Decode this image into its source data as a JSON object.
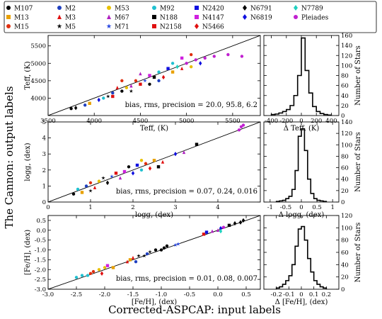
{
  "figure": {
    "ylabel": "The Cannon: output labels",
    "xlabel": "Corrected-ASPCAP: input labels"
  },
  "legend": [
    {
      "name": "M107",
      "color": "#000000",
      "marker": "circle"
    },
    {
      "name": "M2",
      "color": "#1f3fbf",
      "marker": "circle"
    },
    {
      "name": "M53",
      "color": "#e8c000",
      "marker": "circle"
    },
    {
      "name": "M92",
      "color": "#20c0d0",
      "marker": "circle"
    },
    {
      "name": "N2420",
      "color": "#1010e0",
      "marker": "square"
    },
    {
      "name": "N6791",
      "color": "#000000",
      "marker": "diamond"
    },
    {
      "name": "N7789",
      "color": "#20d0c0",
      "marker": "diamond"
    },
    {
      "name": "M13",
      "color": "#e8a000",
      "marker": "square"
    },
    {
      "name": "M3",
      "color": "#e01010",
      "marker": "triangle"
    },
    {
      "name": "M67",
      "color": "#b020c0",
      "marker": "triangle"
    },
    {
      "name": "N188",
      "color": "#000000",
      "marker": "square"
    },
    {
      "name": "N4147",
      "color": "#d020e0",
      "marker": "square"
    },
    {
      "name": "N6819",
      "color": "#1010e0",
      "marker": "diamond"
    },
    {
      "name": "Pleiades",
      "color": "#c020d0",
      "marker": "circle"
    },
    {
      "name": "M15",
      "color": "#e03010",
      "marker": "circle"
    },
    {
      "name": "M5",
      "color": "#000000",
      "marker": "star"
    },
    {
      "name": "M71",
      "color": "#2040e0",
      "marker": "star"
    },
    {
      "name": "N2158",
      "color": "#e01010",
      "marker": "square"
    },
    {
      "name": "N5466",
      "color": "#e01010",
      "marker": "diamond"
    }
  ],
  "chart_data": [
    {
      "type": "scatter",
      "xlabel": "Teff, (K)",
      "ylabel": "Teff, (K)",
      "xlim": [
        3500,
        5800
      ],
      "ylim": [
        3500,
        5800
      ],
      "xticks": [
        3500,
        4000,
        4500,
        5000,
        5500
      ],
      "yticks": [
        4000,
        4500,
        5000,
        5500
      ],
      "one_to_one_line": true,
      "annotation": "bias, rms, precision = 20.0, 95.8, 6.2",
      "points": [
        [
          3750,
          3700,
          "M107"
        ],
        [
          3800,
          3720,
          "N6791"
        ],
        [
          3900,
          3800,
          "M2"
        ],
        [
          3950,
          3850,
          "M13"
        ],
        [
          4050,
          3950,
          "N6819"
        ],
        [
          4100,
          4000,
          "M92"
        ],
        [
          4150,
          4050,
          "M5"
        ],
        [
          4200,
          4150,
          "M2"
        ],
        [
          4250,
          4300,
          "M3"
        ],
        [
          4300,
          4200,
          "M107"
        ],
        [
          4350,
          4300,
          "M53"
        ],
        [
          4400,
          4350,
          "M67"
        ],
        [
          4450,
          4500,
          "M15"
        ],
        [
          4500,
          4400,
          "N2158"
        ],
        [
          4550,
          4500,
          "M71"
        ],
        [
          4600,
          4650,
          "N4147"
        ],
        [
          4650,
          4600,
          "N188"
        ],
        [
          4700,
          4750,
          "M92"
        ],
        [
          4750,
          4600,
          "N5466"
        ],
        [
          4800,
          4850,
          "N2420"
        ],
        [
          4850,
          4750,
          "M13"
        ],
        [
          4900,
          4900,
          "N7789"
        ],
        [
          4950,
          4850,
          "M3"
        ],
        [
          5000,
          5000,
          "Pleiades"
        ],
        [
          5050,
          4900,
          "M53"
        ],
        [
          5100,
          5100,
          "Pleiades"
        ],
        [
          5150,
          5000,
          "N6819"
        ],
        [
          5200,
          5150,
          "Pleiades"
        ],
        [
          5300,
          5200,
          "Pleiades"
        ],
        [
          5450,
          5250,
          "Pleiades"
        ],
        [
          5600,
          5200,
          "Pleiades"
        ],
        [
          4500,
          4700,
          "M67"
        ],
        [
          4300,
          4500,
          "M15"
        ],
        [
          4700,
          4500,
          "M2"
        ],
        [
          4400,
          4200,
          "M5"
        ],
        [
          4950,
          5150,
          "N4147"
        ],
        [
          5050,
          5250,
          "M15"
        ],
        [
          4600,
          4400,
          "M107"
        ],
        [
          4850,
          5000,
          "M92"
        ],
        [
          4200,
          4050,
          "N2158"
        ]
      ]
    },
    {
      "type": "scatter",
      "xlabel": "logg, (dex)",
      "ylabel": "logg, (dex)",
      "xlim": [
        0,
        5
      ],
      "ylim": [
        0,
        5
      ],
      "xticks": [
        0,
        1,
        2,
        3,
        4
      ],
      "yticks": [
        0,
        1,
        2,
        3,
        4,
        5
      ],
      "one_to_one_line": true,
      "annotation": "bias, rms, precision = 0.07, 0.24, 0.016",
      "points": [
        [
          0.6,
          0.5,
          "M107"
        ],
        [
          0.7,
          0.8,
          "M92"
        ],
        [
          0.8,
          0.6,
          "M13"
        ],
        [
          0.9,
          1.0,
          "M2"
        ],
        [
          1.0,
          1.2,
          "M15"
        ],
        [
          1.1,
          0.9,
          "M3"
        ],
        [
          1.2,
          1.3,
          "M53"
        ],
        [
          1.3,
          1.5,
          "M5"
        ],
        [
          1.4,
          1.2,
          "N6791"
        ],
        [
          1.5,
          1.6,
          "M71"
        ],
        [
          1.6,
          1.8,
          "N2158"
        ],
        [
          1.7,
          1.5,
          "M67"
        ],
        [
          1.8,
          1.9,
          "N4147"
        ],
        [
          1.9,
          2.2,
          "M107"
        ],
        [
          2.0,
          1.8,
          "N6819"
        ],
        [
          2.1,
          2.3,
          "N2420"
        ],
        [
          2.2,
          2.0,
          "M92"
        ],
        [
          2.3,
          2.4,
          "M15"
        ],
        [
          2.4,
          2.1,
          "N5466"
        ],
        [
          2.5,
          2.6,
          "M13"
        ],
        [
          2.6,
          2.2,
          "N188"
        ],
        [
          2.7,
          2.5,
          "M3"
        ],
        [
          3.0,
          3.0,
          "N6819"
        ],
        [
          3.2,
          3.1,
          "M67"
        ],
        [
          3.5,
          3.6,
          "N188"
        ],
        [
          4.5,
          4.5,
          "Pleiades"
        ],
        [
          4.55,
          4.7,
          "Pleiades"
        ],
        [
          4.6,
          4.8,
          "Pleiades"
        ],
        [
          1.0,
          0.7,
          "M5"
        ],
        [
          2.2,
          2.6,
          "M53"
        ]
      ]
    },
    {
      "type": "scatter",
      "xlabel": "[Fe/H], (dex)",
      "ylabel": "[Fe/H], (dex)",
      "xlim": [
        -3.0,
        0.75
      ],
      "ylim": [
        -3.0,
        0.75
      ],
      "xticks": [
        -3.0,
        -2.5,
        -2.0,
        -1.5,
        -1.0,
        -0.5,
        0.0,
        0.5
      ],
      "yticks": [
        -3.0,
        -2.5,
        -2.0,
        -1.5,
        -1.0,
        -0.5,
        0.0,
        0.5
      ],
      "one_to_one_line": true,
      "annotation": "bias, rms, precision = 0.01, 0.08, 0.007",
      "points": [
        [
          -2.5,
          -2.4,
          "M92"
        ],
        [
          -2.4,
          -2.3,
          "M92"
        ],
        [
          -2.3,
          -2.3,
          "M92"
        ],
        [
          -2.25,
          -2.2,
          "M15"
        ],
        [
          -2.2,
          -2.1,
          "M15"
        ],
        [
          -2.1,
          -2.0,
          "M53"
        ],
        [
          -2.05,
          -2.2,
          "N5466"
        ],
        [
          -2.0,
          -1.9,
          "M53"
        ],
        [
          -1.95,
          -1.8,
          "N4147"
        ],
        [
          -1.85,
          -1.9,
          "M13"
        ],
        [
          -1.6,
          -1.6,
          "M3"
        ],
        [
          -1.55,
          -1.5,
          "M13"
        ],
        [
          -1.5,
          -1.4,
          "M3"
        ],
        [
          -1.45,
          -1.6,
          "M2"
        ],
        [
          -1.4,
          -1.3,
          "M5"
        ],
        [
          -1.3,
          -1.3,
          "M5"
        ],
        [
          -1.25,
          -1.2,
          "M2"
        ],
        [
          -1.2,
          -1.1,
          "M5"
        ],
        [
          -1.1,
          -1.0,
          "M107"
        ],
        [
          -1.0,
          -1.0,
          "M107"
        ],
        [
          -0.95,
          -0.9,
          "M107"
        ],
        [
          -0.9,
          -0.8,
          "M107"
        ],
        [
          -0.75,
          -0.75,
          "M71"
        ],
        [
          -0.7,
          -0.7,
          "M71"
        ],
        [
          -0.25,
          -0.2,
          "N2158"
        ],
        [
          -0.2,
          -0.1,
          "N2420"
        ],
        [
          -0.1,
          -0.05,
          "M67"
        ],
        [
          0.0,
          0.0,
          "M67"
        ],
        [
          0.05,
          0.1,
          "N6819"
        ],
        [
          0.1,
          0.15,
          "Pleiades"
        ],
        [
          0.2,
          0.25,
          "N188"
        ],
        [
          0.3,
          0.35,
          "N6791"
        ],
        [
          0.4,
          0.4,
          "N6791"
        ],
        [
          0.45,
          0.5,
          "N6791"
        ],
        [
          0.05,
          -0.05,
          "N7789"
        ]
      ]
    },
    {
      "type": "histogram",
      "xlabel": "Δ Teff, (K)",
      "ylabel": "Number of Stars",
      "xlim": [
        -500,
        500
      ],
      "ylim": [
        0,
        160
      ],
      "xticks": [
        -400,
        -200,
        0,
        200,
        400
      ],
      "yticks": [
        0,
        20,
        40,
        60,
        80,
        100,
        120,
        140,
        160
      ],
      "bin_edges": [
        -400,
        -350,
        -300,
        -250,
        -200,
        -150,
        -100,
        -50,
        0,
        50,
        100,
        150,
        200,
        250,
        300,
        350,
        400
      ],
      "counts": [
        2,
        3,
        5,
        8,
        12,
        20,
        40,
        80,
        155,
        90,
        45,
        18,
        8,
        4,
        2,
        1
      ]
    },
    {
      "type": "histogram",
      "xlabel": "Δ logg, (dex)",
      "ylabel": "Number of Stars",
      "xlim": [
        -1.2,
        1.2
      ],
      "ylim": [
        0,
        140
      ],
      "xticks": [
        -1.0,
        -0.5,
        0.0,
        0.5,
        1.0
      ],
      "yticks": [
        0,
        20,
        40,
        60,
        80,
        100,
        120,
        140
      ],
      "bin_edges": [
        -0.8,
        -0.7,
        -0.6,
        -0.5,
        -0.4,
        -0.3,
        -0.2,
        -0.1,
        0.0,
        0.1,
        0.2,
        0.3,
        0.4,
        0.5,
        0.6,
        0.7,
        0.8
      ],
      "counts": [
        1,
        2,
        3,
        6,
        10,
        22,
        55,
        115,
        128,
        90,
        40,
        15,
        6,
        3,
        2,
        1
      ]
    },
    {
      "type": "histogram",
      "xlabel": "Δ [Fe/H], (dex)",
      "ylabel": "Number of Stars",
      "xlim": [
        -0.3,
        0.3
      ],
      "ylim": [
        0,
        120
      ],
      "xticks": [
        -0.2,
        -0.1,
        0.0,
        0.1,
        0.2
      ],
      "yticks": [
        0,
        20,
        40,
        60,
        80,
        100,
        120
      ],
      "bin_edges": [
        -0.2,
        -0.175,
        -0.15,
        -0.125,
        -0.1,
        -0.075,
        -0.05,
        -0.025,
        0.0,
        0.025,
        0.05,
        0.075,
        0.1,
        0.125,
        0.15,
        0.175,
        0.2
      ],
      "counts": [
        2,
        4,
        8,
        14,
        22,
        40,
        70,
        98,
        102,
        80,
        50,
        28,
        14,
        8,
        4,
        2
      ]
    }
  ]
}
